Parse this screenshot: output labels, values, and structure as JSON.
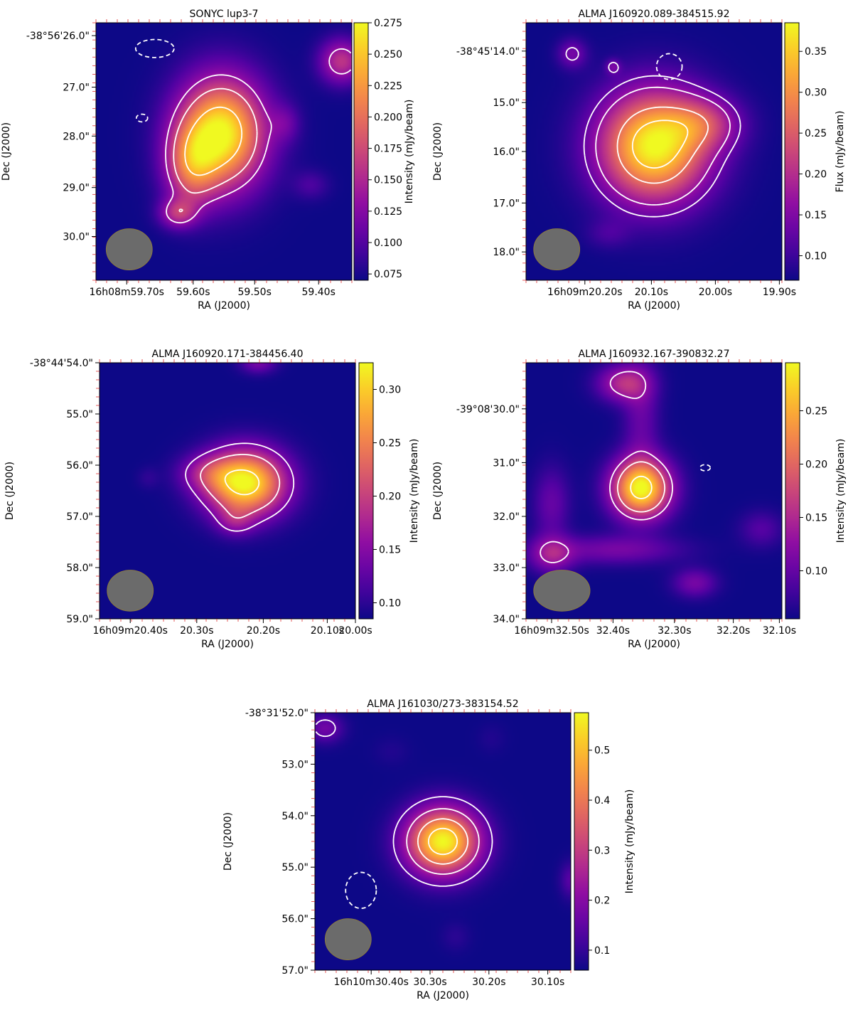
{
  "chart_data": [
    {
      "type": "heatmap",
      "title": "SONYC lup3-7",
      "xlabel": "RA (J2000)",
      "ylabel": "Dec (J2000)",
      "colorbar_label": "Intensity (mJy/beam)",
      "colorbar_range": [
        0.07,
        0.275
      ],
      "colorbar_ticks": [
        "0.075",
        "0.100",
        "0.125",
        "0.150",
        "0.175",
        "0.200",
        "0.225",
        "0.250",
        "0.275"
      ],
      "colorbar_tick_values": [
        0.075,
        0.1,
        0.125,
        0.15,
        0.175,
        0.2,
        0.225,
        0.25,
        0.275
      ],
      "x_ticks": [
        "16h08m59.70s",
        "59.60s",
        "59.50s",
        "59.40s"
      ],
      "x_tick_fracs": [
        0.12,
        0.38,
        0.62,
        0.87
      ],
      "y_ticks": [
        "-38°56'26.0\"",
        "27.0\"",
        "28.0\"",
        "29.0\"",
        "30.0\""
      ],
      "y_tick_fracs": [
        0.05,
        0.25,
        0.44,
        0.64,
        0.83
      ],
      "colormap": "plasma",
      "background_color": "#0d0887",
      "beam_color": "#6b6b6b",
      "contour_color": "#ffffff",
      "sources": [
        {
          "x": 0.49,
          "y": 0.43,
          "peak": 0.275,
          "sx": 0.12,
          "sy": 0.15
        },
        {
          "x": 0.37,
          "y": 0.56,
          "peak": 0.16,
          "sx": 0.07,
          "sy": 0.11
        },
        {
          "x": 0.32,
          "y": 0.74,
          "peak": 0.145,
          "sx": 0.05,
          "sy": 0.04
        },
        {
          "x": 0.96,
          "y": 0.15,
          "peak": 0.16,
          "sx": 0.06,
          "sy": 0.06
        },
        {
          "x": 0.74,
          "y": 0.39,
          "peak": 0.1,
          "sx": 0.04,
          "sy": 0.05
        },
        {
          "x": 0.84,
          "y": 0.63,
          "peak": 0.095,
          "sx": 0.05,
          "sy": 0.04
        }
      ],
      "contours": [
        {
          "level": 0.135,
          "dashed": false
        },
        {
          "level": 0.175,
          "dashed": false
        },
        {
          "level": 0.235,
          "dashed": false
        }
      ],
      "negative_features": [
        {
          "x": 0.23,
          "y": 0.1,
          "rx": 0.075,
          "ry": 0.035
        },
        {
          "x": 0.18,
          "y": 0.37,
          "rx": 0.022,
          "ry": 0.015
        }
      ],
      "beam": {
        "x": 0.13,
        "y": 0.88,
        "rx": 0.09,
        "ry": 0.08
      }
    },
    {
      "type": "heatmap",
      "title": "ALMA J160920.089-384515.92",
      "xlabel": "RA (J2000)",
      "ylabel": "Dec (J2000)",
      "colorbar_label": "Flux (mJy/beam)",
      "colorbar_range": [
        0.07,
        0.385
      ],
      "colorbar_ticks": [
        "0.10",
        "0.15",
        "0.20",
        "0.25",
        "0.30",
        "0.35"
      ],
      "colorbar_tick_values": [
        0.1,
        0.15,
        0.2,
        0.25,
        0.3,
        0.35
      ],
      "x_ticks": [
        "16h09m20.20s",
        "20.10s",
        "20.00s",
        "19.90s"
      ],
      "x_tick_fracs": [
        0.23,
        0.49,
        0.74,
        0.99
      ],
      "y_ticks": [
        "-38°45'14.0\"",
        "15.0\"",
        "16.0\"",
        "17.0\"",
        "18.0\""
      ],
      "y_tick_fracs": [
        0.11,
        0.31,
        0.5,
        0.7,
        0.89
      ],
      "colormap": "plasma",
      "background_color": "#0d0887",
      "beam_color": "#6b6b6b",
      "contour_color": "#ffffff",
      "sources": [
        {
          "x": 0.5,
          "y": 0.48,
          "peak": 0.385,
          "sx": 0.15,
          "sy": 0.15
        },
        {
          "x": 0.7,
          "y": 0.39,
          "peak": 0.17,
          "sx": 0.1,
          "sy": 0.07
        },
        {
          "x": 0.18,
          "y": 0.12,
          "peak": 0.14,
          "sx": 0.04,
          "sy": 0.04
        },
        {
          "x": 0.34,
          "y": 0.17,
          "peak": 0.13,
          "sx": 0.02,
          "sy": 0.02
        },
        {
          "x": 0.32,
          "y": 0.82,
          "peak": 0.1,
          "sx": 0.06,
          "sy": 0.04
        }
      ],
      "contours": [
        {
          "level": 0.13,
          "dashed": false
        },
        {
          "level": 0.17,
          "dashed": false
        },
        {
          "level": 0.27,
          "dashed": false
        },
        {
          "level": 0.34,
          "dashed": false
        }
      ],
      "negative_features": [
        {
          "x": 0.56,
          "y": 0.17,
          "rx": 0.05,
          "ry": 0.05
        }
      ],
      "beam": {
        "x": 0.12,
        "y": 0.88,
        "rx": 0.09,
        "ry": 0.08
      }
    },
    {
      "type": "heatmap",
      "title": "ALMA J160920.171-384456.40",
      "xlabel": "RA (J2000)",
      "ylabel": "Dec (J2000)",
      "colorbar_label": "Intensity (mJy/beam)",
      "colorbar_range": [
        0.085,
        0.325
      ],
      "colorbar_ticks": [
        "0.10",
        "0.15",
        "0.20",
        "0.25",
        "0.30"
      ],
      "colorbar_tick_values": [
        0.1,
        0.15,
        0.2,
        0.25,
        0.3
      ],
      "x_ticks": [
        "16h09m20.40s",
        "20.30s",
        "20.20s",
        "20.10s",
        "20.00s"
      ],
      "x_tick_fracs": [
        0.12,
        0.38,
        0.64,
        0.89,
        1.0
      ],
      "y_ticks": [
        "-38°44'54.0\"",
        "55.0\"",
        "56.0\"",
        "57.0\"",
        "58.0\"",
        "59.0\""
      ],
      "y_tick_fracs": [
        0.0,
        0.2,
        0.4,
        0.6,
        0.8,
        1.0
      ],
      "colormap": "plasma",
      "background_color": "#0d0887",
      "beam_color": "#6b6b6b",
      "contour_color": "#ffffff",
      "sources": [
        {
          "x": 0.57,
          "y": 0.47,
          "peak": 0.325,
          "sx": 0.11,
          "sy": 0.09
        },
        {
          "x": 0.42,
          "y": 0.43,
          "peak": 0.14,
          "sx": 0.08,
          "sy": 0.05
        },
        {
          "x": 0.53,
          "y": 0.62,
          "peak": 0.13,
          "sx": 0.05,
          "sy": 0.04
        },
        {
          "x": 0.62,
          "y": 0.0,
          "peak": 0.14,
          "sx": 0.05,
          "sy": 0.03
        },
        {
          "x": 0.19,
          "y": 0.45,
          "peak": 0.1,
          "sx": 0.03,
          "sy": 0.03
        }
      ],
      "contours": [
        {
          "level": 0.14,
          "dashed": false
        },
        {
          "level": 0.2,
          "dashed": false
        },
        {
          "level": 0.3,
          "dashed": false
        }
      ],
      "negative_features": [],
      "beam": {
        "x": 0.12,
        "y": 0.89,
        "rx": 0.09,
        "ry": 0.08
      }
    },
    {
      "type": "heatmap",
      "title": "ALMA J160932.167-390832.27",
      "xlabel": "RA (J2000)",
      "ylabel": "Dec (J2000)",
      "colorbar_label": "Intensity (mJy/beam)",
      "colorbar_range": [
        0.055,
        0.295
      ],
      "colorbar_ticks": [
        "0.10",
        "0.15",
        "0.20",
        "0.25"
      ],
      "colorbar_tick_values": [
        0.1,
        0.15,
        0.2,
        0.25
      ],
      "x_ticks": [
        "16h09m32.50s",
        "32.40s",
        "32.30s",
        "32.20s",
        "32.10s"
      ],
      "x_tick_fracs": [
        0.1,
        0.34,
        0.58,
        0.81,
        0.99
      ],
      "y_ticks": [
        "-39°08'30.0\"",
        "31.0\"",
        "32.0\"",
        "33.0\"",
        "34.0\""
      ],
      "y_tick_fracs": [
        0.18,
        0.39,
        0.6,
        0.8,
        1.0
      ],
      "colormap": "plasma",
      "background_color": "#0d0887",
      "beam_color": "#6b6b6b",
      "contour_color": "#ffffff",
      "sources": [
        {
          "x": 0.45,
          "y": 0.49,
          "peak": 0.295,
          "sx": 0.08,
          "sy": 0.08
        },
        {
          "x": 0.38,
          "y": 0.08,
          "peak": 0.15,
          "sx": 0.07,
          "sy": 0.05
        },
        {
          "x": 0.45,
          "y": 0.2,
          "peak": 0.1,
          "sx": 0.05,
          "sy": 0.15
        },
        {
          "x": 0.1,
          "y": 0.55,
          "peak": 0.1,
          "sx": 0.05,
          "sy": 0.1
        },
        {
          "x": 0.1,
          "y": 0.75,
          "peak": 0.13,
          "sx": 0.06,
          "sy": 0.05
        },
        {
          "x": 0.35,
          "y": 0.73,
          "peak": 0.11,
          "sx": 0.18,
          "sy": 0.04
        },
        {
          "x": 0.66,
          "y": 0.86,
          "peak": 0.11,
          "sx": 0.06,
          "sy": 0.04
        },
        {
          "x": 0.92,
          "y": 0.65,
          "peak": 0.09,
          "sx": 0.06,
          "sy": 0.05
        }
      ],
      "contours": [
        {
          "level": 0.13,
          "dashed": false
        },
        {
          "level": 0.18,
          "dashed": false
        },
        {
          "level": 0.27,
          "dashed": false
        }
      ],
      "negative_features": [
        {
          "x": 0.7,
          "y": 0.41,
          "rx": 0.02,
          "ry": 0.012
        }
      ],
      "beam": {
        "x": 0.14,
        "y": 0.89,
        "rx": 0.11,
        "ry": 0.08
      }
    },
    {
      "type": "heatmap",
      "title": "ALMA J161030/273-383154.52",
      "xlabel": "RA (J2000)",
      "ylabel": "Dec (J2000)",
      "colorbar_label": "Intensity (mJy/beam)",
      "colorbar_range": [
        0.06,
        0.575
      ],
      "colorbar_ticks": [
        "0.1",
        "0.2",
        "0.3",
        "0.4",
        "0.5"
      ],
      "colorbar_tick_values": [
        0.1,
        0.2,
        0.3,
        0.4,
        0.5
      ],
      "x_ticks": [
        "16h10m30.40s",
        "30.30s",
        "30.20s",
        "30.10s"
      ],
      "x_tick_fracs": [
        0.22,
        0.45,
        0.68,
        0.91
      ],
      "y_ticks": [
        "-38°31'52.0\"",
        "53.0\"",
        "54.0\"",
        "55.0\"",
        "56.0\"",
        "57.0\""
      ],
      "y_tick_fracs": [
        0.0,
        0.2,
        0.4,
        0.6,
        0.8,
        1.0
      ],
      "colormap": "plasma",
      "background_color": "#0d0887",
      "beam_color": "#6b6b6b",
      "contour_color": "#ffffff",
      "sources": [
        {
          "x": 0.5,
          "y": 0.5,
          "peak": 0.575,
          "sx": 0.1,
          "sy": 0.09
        },
        {
          "x": 0.04,
          "y": 0.06,
          "peak": 0.17,
          "sx": 0.05,
          "sy": 0.04
        },
        {
          "x": 1.0,
          "y": 0.65,
          "peak": 0.14,
          "sx": 0.03,
          "sy": 0.05
        },
        {
          "x": 0.69,
          "y": 0.1,
          "peak": 0.08,
          "sx": 0.04,
          "sy": 0.04
        },
        {
          "x": 0.3,
          "y": 0.15,
          "peak": 0.08,
          "sx": 0.05,
          "sy": 0.04
        },
        {
          "x": 0.55,
          "y": 0.87,
          "peak": 0.09,
          "sx": 0.04,
          "sy": 0.04
        }
      ],
      "contours": [
        {
          "level": 0.14,
          "dashed": false
        },
        {
          "level": 0.25,
          "dashed": false
        },
        {
          "level": 0.38,
          "dashed": false
        },
        {
          "level": 0.5,
          "dashed": false
        }
      ],
      "negative_features": [
        {
          "x": 0.18,
          "y": 0.69,
          "rx": 0.06,
          "ry": 0.07
        }
      ],
      "beam": {
        "x": 0.13,
        "y": 0.88,
        "rx": 0.09,
        "ry": 0.08
      }
    }
  ]
}
